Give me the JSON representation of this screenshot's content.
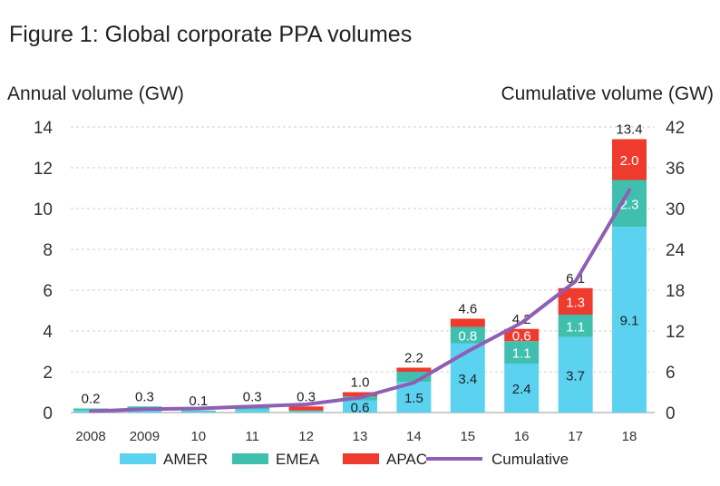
{
  "colors": {
    "AMER": "#5bd2f0",
    "EMEA": "#41bfae",
    "APAC": "#ef3a2e",
    "Cumulative": "#8e5fb4",
    "grid": "#cfcfcf"
  },
  "chart_data": {
    "type": "bar",
    "stacked": true,
    "title": "Figure 1: Global corporate PPA volumes",
    "ylabel": "Annual volume (GW)",
    "y2label": "Cumulative volume (GW)",
    "ylim": [
      0,
      14
    ],
    "y_ticks": [
      0,
      2,
      4,
      6,
      8,
      10,
      12,
      14
    ],
    "y2lim": [
      0,
      42
    ],
    "y2_ticks": [
      0,
      6,
      12,
      18,
      24,
      30,
      36,
      42
    ],
    "grid": true,
    "legend_position": "bottom",
    "categories": [
      "2008",
      "2009",
      "10",
      "11",
      "12",
      "13",
      "14",
      "15",
      "16",
      "17",
      "18"
    ],
    "series": [
      {
        "name": "AMER",
        "values": [
          0.1,
          0.1,
          0.05,
          0.15,
          0.05,
          0.6,
          1.5,
          3.4,
          2.4,
          3.7,
          9.1
        ],
        "labels": [
          "",
          "",
          "",
          "",
          "",
          "0.6",
          "1.5",
          "3.4",
          "2.4",
          "3.7",
          "9.1"
        ]
      },
      {
        "name": "EMEA",
        "values": [
          0.1,
          0.2,
          0.05,
          0.1,
          0.05,
          0.2,
          0.5,
          0.8,
          1.1,
          1.1,
          2.3
        ],
        "labels": [
          "",
          "",
          "",
          "",
          "",
          "",
          "",
          "0.8",
          "1.1",
          "1.1",
          "2.3"
        ]
      },
      {
        "name": "APAC",
        "values": [
          0.0,
          0.0,
          0.0,
          0.05,
          0.2,
          0.2,
          0.2,
          0.4,
          0.6,
          1.3,
          2.0
        ],
        "labels": [
          "",
          "",
          "",
          "",
          "",
          "",
          "",
          "",
          "0.6",
          "1.3",
          "2.0"
        ]
      }
    ],
    "totals": [
      "0.2",
      "0.3",
      "0.1",
      "0.3",
      "0.3",
      "1.0",
      "2.2",
      "4.6",
      "4.2",
      "6.1",
      "13.4"
    ],
    "line": {
      "name": "Cumulative",
      "axis": "right",
      "values": [
        0.2,
        0.5,
        0.6,
        0.9,
        1.2,
        2.2,
        4.4,
        9.0,
        13.2,
        19.3,
        32.7
      ]
    },
    "legend": [
      "AMER",
      "EMEA",
      "APAC",
      "Cumulative"
    ]
  }
}
